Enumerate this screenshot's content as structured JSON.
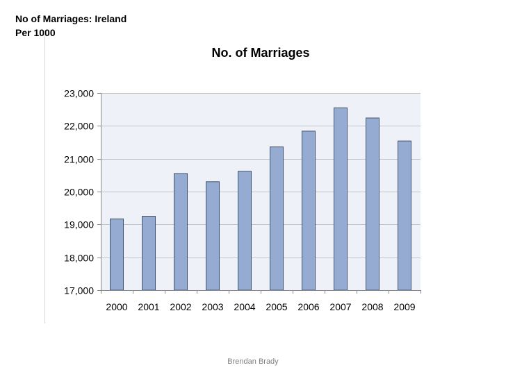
{
  "heading": {
    "line1": "No of Marriages: Ireland",
    "line2": "Per 1000"
  },
  "footer": "Brendan Brady",
  "chart_data": {
    "type": "bar",
    "title": "No. of Marriages",
    "xlabel": "",
    "ylabel": "",
    "categories": [
      "2000",
      "2001",
      "2002",
      "2003",
      "2004",
      "2005",
      "2006",
      "2007",
      "2008",
      "2009"
    ],
    "values": [
      19170,
      19250,
      20550,
      20300,
      20620,
      21360,
      21840,
      22550,
      22240,
      21540
    ],
    "ylim": [
      17000,
      23000
    ],
    "yticks": [
      17000,
      18000,
      19000,
      20000,
      21000,
      22000,
      23000
    ],
    "ytick_labels": [
      "17,000",
      "18,000",
      "19,000",
      "20,000",
      "21,000",
      "22,000",
      "23,000"
    ],
    "grid": true,
    "legend": "none",
    "colors": {
      "plot_background": "#eef1f8",
      "bar_fill": "#95abd2",
      "bar_stroke": "#3f5677",
      "gridline": "#c3c3c3",
      "axis": "#898989"
    }
  }
}
